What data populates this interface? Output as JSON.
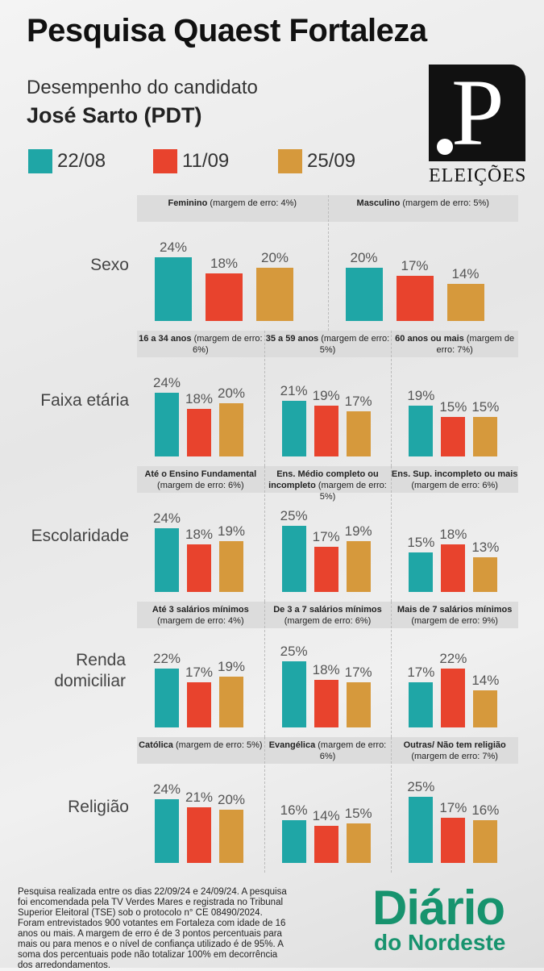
{
  "title": "Pesquisa Quaest Fortaleza",
  "subtitle": "Desempenho do candidato",
  "candidate": "José Sarto (PDT)",
  "logo": {
    "letter": "P",
    "caption": "ELEIÇÕES"
  },
  "footer": "Pesquisa realizada entre os dias 22/09/24 e 24/09/24. A pesquisa foi encomendada pela TV Verdes Mares e registrada no Tribunal Superior Eleitoral (TSE) sob o protocolo n° CE 08490/2024. Foram entrevistados 900 votantes em Fortaleza com idade de 16 anos ou mais. A margem de erro é de 3 pontos percentuais para mais ou para menos e o nível de confiança utilizado é de 95%. A soma dos percentuais pode não totalizar 100% em decorrência dos arredondamentos.",
  "brand": {
    "line1": "Diário",
    "line2": "do Nordeste"
  },
  "chart_data": {
    "type": "bar",
    "series": [
      {
        "name": "22/08",
        "color": "#1fa6a6"
      },
      {
        "name": "11/09",
        "color": "#e8432d"
      },
      {
        "name": "25/09",
        "color": "#d6993c"
      }
    ],
    "unit": "%",
    "groups": [
      {
        "label": "Sexo",
        "panels": [
          {
            "bold": "Feminino",
            "margin": "(margem de erro: 4%)",
            "values": [
              24,
              18,
              20
            ]
          },
          {
            "bold": "Masculino",
            "margin": "(margem de erro: 5%)",
            "values": [
              20,
              17,
              14
            ]
          }
        ]
      },
      {
        "label": "Faixa etária",
        "panels": [
          {
            "bold": "16 a 34 anos",
            "margin": "(margem de erro: 6%)",
            "values": [
              24,
              18,
              20
            ]
          },
          {
            "bold": "35 a 59 anos",
            "margin": "(margem de erro: 5%)",
            "values": [
              21,
              19,
              17
            ]
          },
          {
            "bold": "60 anos ou mais",
            "margin": "(margem de erro: 7%)",
            "values": [
              19,
              15,
              15
            ]
          }
        ]
      },
      {
        "label": "Escolaridade",
        "panels": [
          {
            "bold": "Até o Ensino Fundamental",
            "margin": "(margem de erro: 6%)",
            "values": [
              24,
              18,
              19
            ]
          },
          {
            "bold": "Ens. Médio completo ou incompleto",
            "margin": "(margem de erro: 5%)",
            "values": [
              25,
              17,
              19
            ]
          },
          {
            "bold": "Ens. Sup. incompleto ou mais",
            "margin": "(margem de erro: 6%)",
            "values": [
              15,
              18,
              13
            ]
          }
        ]
      },
      {
        "label": "Renda domiciliar",
        "panels": [
          {
            "bold": "Até 3 salários mínimos",
            "margin": "(margem de erro: 4%)",
            "values": [
              22,
              17,
              19
            ]
          },
          {
            "bold": "De 3 a 7 salários mínimos",
            "margin": "(margem de erro: 6%)",
            "values": [
              25,
              18,
              17
            ]
          },
          {
            "bold": "Mais de 7 salários mínimos",
            "margin": "(margem de erro: 9%)",
            "values": [
              17,
              22,
              14
            ]
          }
        ]
      },
      {
        "label": "Religião",
        "panels": [
          {
            "bold": "Católica",
            "margin": "(margem de erro: 5%)",
            "values": [
              24,
              21,
              20
            ]
          },
          {
            "bold": "Evangélica",
            "margin": "(margem de erro: 6%)",
            "values": [
              16,
              14,
              15
            ]
          },
          {
            "bold": "Outras/ Não tem religião",
            "margin": "(margem de erro: 7%)",
            "values": [
              25,
              17,
              16
            ]
          }
        ]
      }
    ]
  }
}
